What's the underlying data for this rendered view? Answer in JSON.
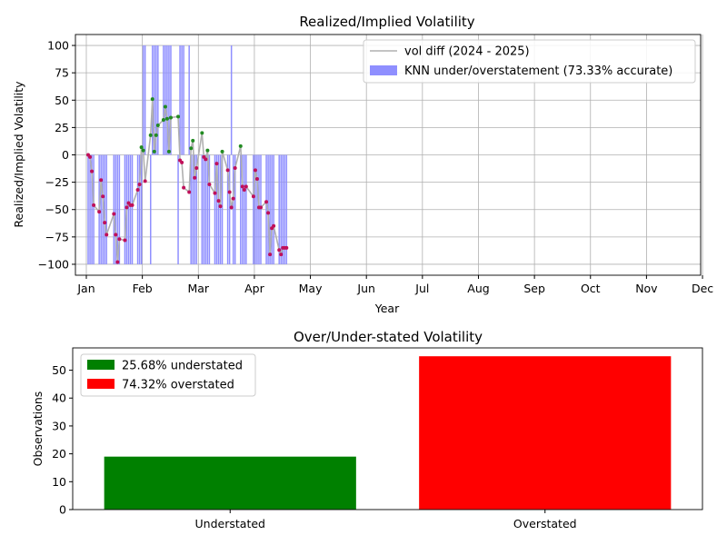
{
  "chart_data": [
    {
      "type": "line",
      "title": "Realized/Implied Volatility",
      "xlabel": "Year",
      "ylabel": "Realized/Implied Volatility",
      "x_tick_labels": [
        "Jan",
        "Feb",
        "Mar",
        "Apr",
        "May",
        "Jun",
        "Jul",
        "Aug",
        "Sep",
        "Oct",
        "Nov",
        "Dec"
      ],
      "y_ticks": [
        100,
        75,
        50,
        25,
        0,
        -25,
        -50,
        -75,
        -100
      ],
      "ylim": [
        -110,
        110
      ],
      "grid": true,
      "legend_position": "top-right",
      "colors": {
        "line": "#b0b0b0",
        "bars": "#8f8fff",
        "understated": "#228B22",
        "overstated": "#c0105a"
      },
      "legend": [
        {
          "label": "vol diff (2024 - 2025)",
          "kind": "line"
        },
        {
          "label": "KNN under/overstatement (73.33% accurate)",
          "kind": "bar"
        }
      ],
      "series": [
        {
          "name": "vol diff (2024 - 2025)",
          "x": [
            "2024-01-02",
            "2024-01-03",
            "2024-01-04",
            "2024-01-05",
            "2024-01-08",
            "2024-01-09",
            "2024-01-10",
            "2024-01-11",
            "2024-01-12",
            "2024-01-16",
            "2024-01-17",
            "2024-01-18",
            "2024-01-19",
            "2024-01-22",
            "2024-01-23",
            "2024-01-24",
            "2024-01-25",
            "2024-01-26",
            "2024-01-29",
            "2024-01-30",
            "2024-01-31",
            "2024-02-01",
            "2024-02-02",
            "2024-02-05",
            "2024-02-06",
            "2024-02-07",
            "2024-02-08",
            "2024-02-09",
            "2024-02-12",
            "2024-02-13",
            "2024-02-14",
            "2024-02-15",
            "2024-02-16",
            "2024-02-20",
            "2024-02-21",
            "2024-02-22",
            "2024-02-23",
            "2024-02-26",
            "2024-02-27",
            "2024-02-28",
            "2024-02-29",
            "2024-03-01",
            "2024-03-04",
            "2024-03-05",
            "2024-03-06",
            "2024-03-07",
            "2024-03-08",
            "2024-03-11",
            "2024-03-12",
            "2024-03-13",
            "2024-03-14",
            "2024-03-15",
            "2024-03-18",
            "2024-03-19",
            "2024-03-20",
            "2024-03-21",
            "2024-03-22",
            "2024-03-25",
            "2024-03-26",
            "2024-03-27",
            "2024-03-28",
            "2024-04-01",
            "2024-04-02",
            "2024-04-03",
            "2024-04-04",
            "2024-04-05",
            "2024-04-08",
            "2024-04-09",
            "2024-04-10",
            "2024-04-11",
            "2024-04-12",
            "2024-04-15",
            "2024-04-16",
            "2024-04-17",
            "2024-04-18",
            "2024-04-19"
          ],
          "values": [
            0,
            -2,
            -15,
            -46,
            -52,
            -23,
            -38,
            -62,
            -73,
            -54,
            -73,
            -98,
            -77,
            -78,
            -48,
            -44,
            -46,
            -46,
            -32,
            -27,
            7,
            4,
            -24,
            18,
            51,
            3,
            18,
            27,
            32,
            44,
            33,
            3,
            34,
            35,
            -5,
            -7,
            -30,
            -34,
            6,
            13,
            -21,
            -12,
            20,
            -2,
            -4,
            4,
            -27,
            -35,
            -8,
            -42,
            -47,
            3,
            -14,
            -34,
            -48,
            -40,
            -12,
            8,
            -29,
            -32,
            -29,
            -38,
            -14,
            -22,
            -48,
            -48,
            -43,
            -53,
            -91,
            -67,
            -65,
            -87,
            -91,
            -85,
            -85,
            -85
          ]
        },
        {
          "name": "KNN under/overstatement (73.33% accurate)",
          "x": [
            "2024-01-02",
            "2024-01-03",
            "2024-01-04",
            "2024-01-05",
            "2024-01-08",
            "2024-01-09",
            "2024-01-10",
            "2024-01-11",
            "2024-01-12",
            "2024-01-16",
            "2024-01-17",
            "2024-01-18",
            "2024-01-19",
            "2024-01-22",
            "2024-01-23",
            "2024-01-24",
            "2024-01-25",
            "2024-01-26",
            "2024-01-29",
            "2024-01-30",
            "2024-01-31",
            "2024-02-01",
            "2024-02-02",
            "2024-02-05",
            "2024-02-06",
            "2024-02-07",
            "2024-02-08",
            "2024-02-09",
            "2024-02-12",
            "2024-02-13",
            "2024-02-14",
            "2024-02-15",
            "2024-02-16",
            "2024-02-20",
            "2024-02-21",
            "2024-02-22",
            "2024-02-23",
            "2024-02-26",
            "2024-02-27",
            "2024-02-28",
            "2024-02-29",
            "2024-03-01",
            "2024-03-04",
            "2024-03-05",
            "2024-03-06",
            "2024-03-07",
            "2024-03-08",
            "2024-03-11",
            "2024-03-12",
            "2024-03-13",
            "2024-03-14",
            "2024-03-15",
            "2024-03-18",
            "2024-03-19",
            "2024-03-20",
            "2024-03-21",
            "2024-03-22",
            "2024-03-25",
            "2024-03-26",
            "2024-03-27",
            "2024-03-28",
            "2024-04-01",
            "2024-04-02",
            "2024-04-03",
            "2024-04-04",
            "2024-04-05",
            "2024-04-08",
            "2024-04-09",
            "2024-04-10",
            "2024-04-11",
            "2024-04-12",
            "2024-04-15",
            "2024-04-16",
            "2024-04-17",
            "2024-04-18",
            "2024-04-19"
          ],
          "values": [
            -100,
            -100,
            -100,
            -100,
            -100,
            -100,
            -100,
            -100,
            -100,
            -100,
            -100,
            -100,
            -100,
            -100,
            -100,
            -100,
            -100,
            -100,
            -100,
            -100,
            -100,
            100,
            100,
            -100,
            100,
            100,
            100,
            100,
            100,
            100,
            100,
            100,
            100,
            -100,
            100,
            100,
            100,
            100,
            -100,
            -100,
            -100,
            -100,
            -100,
            -100,
            -100,
            -100,
            -100,
            -100,
            -100,
            -100,
            -100,
            -100,
            -100,
            -100,
            100,
            -100,
            -100,
            -100,
            -100,
            -100,
            -100,
            -100,
            -100,
            -100,
            -100,
            -100,
            -100,
            -100,
            -100,
            -100,
            -100,
            -100,
            -100,
            -100,
            -100,
            -100
          ]
        }
      ]
    },
    {
      "type": "bar",
      "title": "Over/Under-stated Volatility",
      "xlabel": "",
      "ylabel": "Observations",
      "categories": [
        "Understated",
        "Overstated"
      ],
      "values": [
        19,
        55
      ],
      "colors": [
        "#008000",
        "#ff0000"
      ],
      "y_ticks": [
        0,
        10,
        20,
        30,
        40,
        50
      ],
      "ylim": [
        0,
        58
      ],
      "grid": false,
      "legend_position": "top-left",
      "legend": [
        {
          "label": "25.68% understated",
          "color": "#008000"
        },
        {
          "label": "74.32% overstated",
          "color": "#ff0000"
        }
      ]
    }
  ]
}
